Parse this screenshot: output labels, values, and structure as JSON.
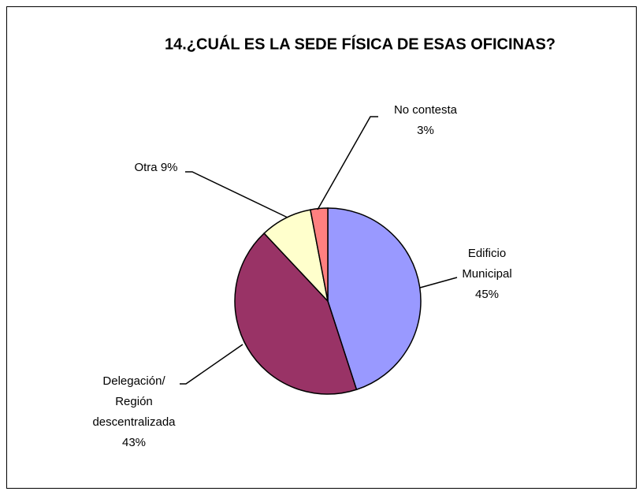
{
  "chart_data": {
    "type": "pie",
    "title": "14.¿CUÁL ES LA SEDE FÍSICA DE ESAS OFICINAS?",
    "categories": [
      "Edificio\nMunicipal",
      "Delegación/\nRegión\ndescentralizada",
      "Otra",
      "No contesta"
    ],
    "values": [
      45,
      43,
      9,
      3
    ],
    "value_labels": [
      "45%",
      "43%",
      "9%",
      "3%"
    ],
    "colors": [
      "#9999ff",
      "#993366",
      "#ffffcc",
      "#ff8080"
    ]
  }
}
